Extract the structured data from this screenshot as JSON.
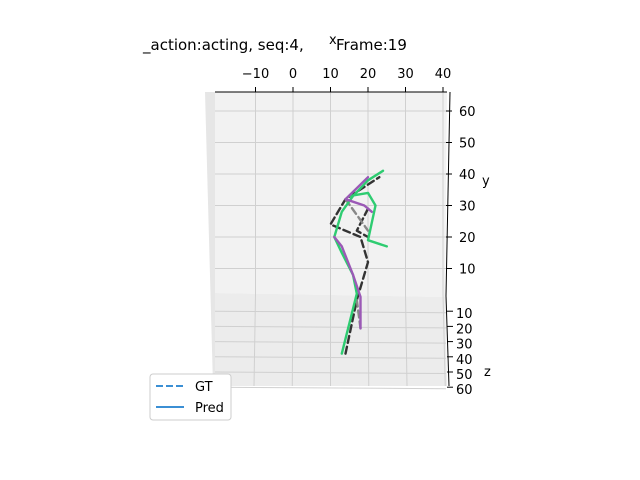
{
  "chart_data": {
    "type": "line",
    "title": "_action:acting, seq:4,",
    "title_suffix": "Frame:19",
    "axes": {
      "x": {
        "label": "x",
        "ticks": [
          -10,
          0,
          10,
          20,
          30,
          40
        ]
      },
      "y": {
        "label": "y",
        "ticks": [
          10,
          20,
          30,
          40,
          50,
          60
        ]
      },
      "z": {
        "label": "z",
        "ticks": [
          10,
          20,
          30,
          40,
          50,
          60
        ]
      }
    },
    "grid": true,
    "legend": {
      "placement": "bottom-left",
      "entries": [
        {
          "label": "GT",
          "style": "dashed",
          "color": "#3b8fd4"
        },
        {
          "label": "Pred",
          "style": "solid",
          "color": "#3b8fd4"
        }
      ]
    },
    "series": [
      {
        "name": "GT",
        "segments": [
          {
            "color": "#333333",
            "style": "dashed",
            "points": [
              [
                14,
                -17
              ],
              [
                17,
                0
              ],
              [
                20,
                12
              ],
              [
                18,
                20
              ],
              [
                10,
                24
              ],
              [
                14,
                32
              ],
              [
                23,
                39
              ]
            ]
          },
          {
            "color": "#333333",
            "style": "dashed",
            "points": [
              [
                20,
                29
              ],
              [
                17,
                22
              ],
              [
                20,
                20
              ]
            ]
          },
          {
            "color": "#888888",
            "style": "dashed",
            "points": [
              [
                18,
                -9
              ],
              [
                17,
                0
              ]
            ]
          },
          {
            "color": "#888888",
            "style": "dashed",
            "points": [
              [
                14,
                32
              ],
              [
                17,
                27
              ],
              [
                20,
                22
              ]
            ]
          }
        ]
      },
      {
        "name": "Pred",
        "segments": [
          {
            "color": "#2ecc71",
            "style": "solid",
            "points": [
              [
                13,
                -17
              ],
              [
                17,
                2
              ],
              [
                16,
                8
              ],
              [
                13,
                15
              ],
              [
                11,
                20
              ],
              [
                13,
                28
              ],
              [
                16,
                33
              ],
              [
                20,
                38
              ],
              [
                24,
                41
              ]
            ]
          },
          {
            "color": "#2ecc71",
            "style": "solid",
            "points": [
              [
                15,
                33
              ],
              [
                20,
                34
              ],
              [
                22,
                30
              ],
              [
                20,
                19
              ],
              [
                25,
                17
              ]
            ]
          },
          {
            "color": "#9b59b6",
            "style": "solid",
            "points": [
              [
                18,
                -9
              ],
              [
                18,
                1
              ],
              [
                16,
                8
              ],
              [
                13,
                17
              ],
              [
                11,
                20
              ]
            ]
          },
          {
            "color": "#9b59b6",
            "style": "solid",
            "points": [
              [
                20,
                39
              ],
              [
                14,
                32
              ],
              [
                19,
                30
              ],
              [
                21,
                28
              ]
            ]
          }
        ]
      }
    ]
  }
}
